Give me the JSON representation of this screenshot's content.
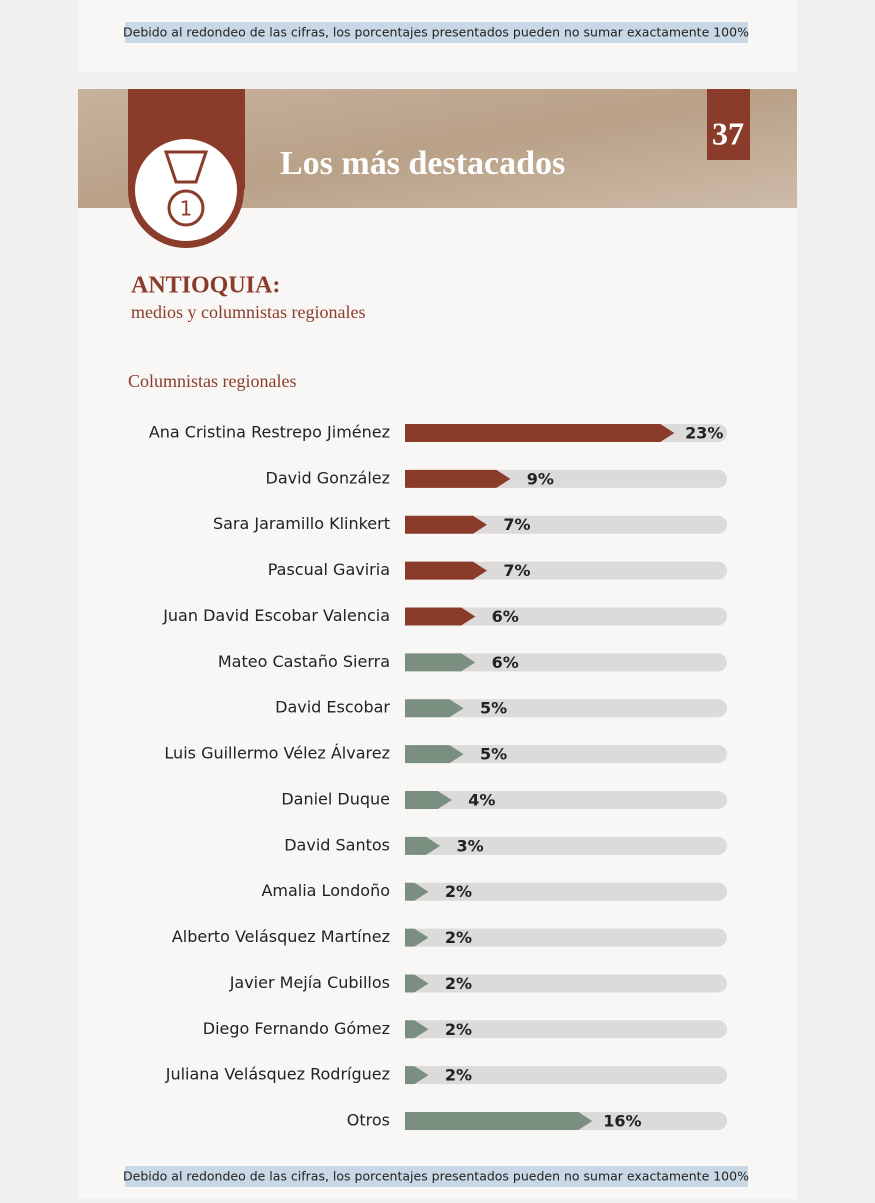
{
  "top_note": "Debido al redondeo de las cifras, los porcentajes presentados pueden no sumar exactamente 100%",
  "header": {
    "title": "Los más destacados",
    "page_number": "37"
  },
  "section": {
    "title": "ANTIOQUIA:",
    "subtitle": "medios y columnistas regionales"
  },
  "chart_data": {
    "type": "hbar",
    "title": "Columnistas regionales",
    "categories": [
      "Ana Cristina Restrepo Jiménez",
      "David González",
      "Sara Jaramillo Klinkert",
      "Pascual Gaviria",
      "Juan David Escobar Valencia",
      "Mateo Castaño Sierra",
      "David Escobar",
      "Luis Guillermo Vélez Álvarez",
      "Daniel Duque",
      "David Santos",
      "Amalia Londoño",
      "Alberto Velásquez Martínez",
      "Javier Mejía Cubillos",
      "Diego Fernando Gómez",
      "Juliana Velásquez Rodríguez",
      "Otros"
    ],
    "values": [
      23,
      9,
      7,
      7,
      6,
      6,
      5,
      5,
      4,
      3,
      2,
      2,
      2,
      2,
      2,
      16
    ],
    "value_labels": [
      "23%",
      "9%",
      "7%",
      "7%",
      "6%",
      "6%",
      "5%",
      "5%",
      "4%",
      "3%",
      "2%",
      "2%",
      "2%",
      "2%",
      "2%",
      "16%"
    ],
    "colors": [
      "#8b3b2a",
      "#8b3b2a",
      "#8b3b2a",
      "#8b3b2a",
      "#8b3b2a",
      "#7b8f80",
      "#7b8f80",
      "#7b8f80",
      "#7b8f80",
      "#7b8f80",
      "#7b8f80",
      "#7b8f80",
      "#7b8f80",
      "#7b8f80",
      "#7b8f80",
      "#7b8f80"
    ],
    "xlim": [
      0,
      27.5
    ]
  },
  "bottom_note": "Debido al redondeo de las cifras, los porcentajes presentados pueden no sumar exactamente 100%"
}
